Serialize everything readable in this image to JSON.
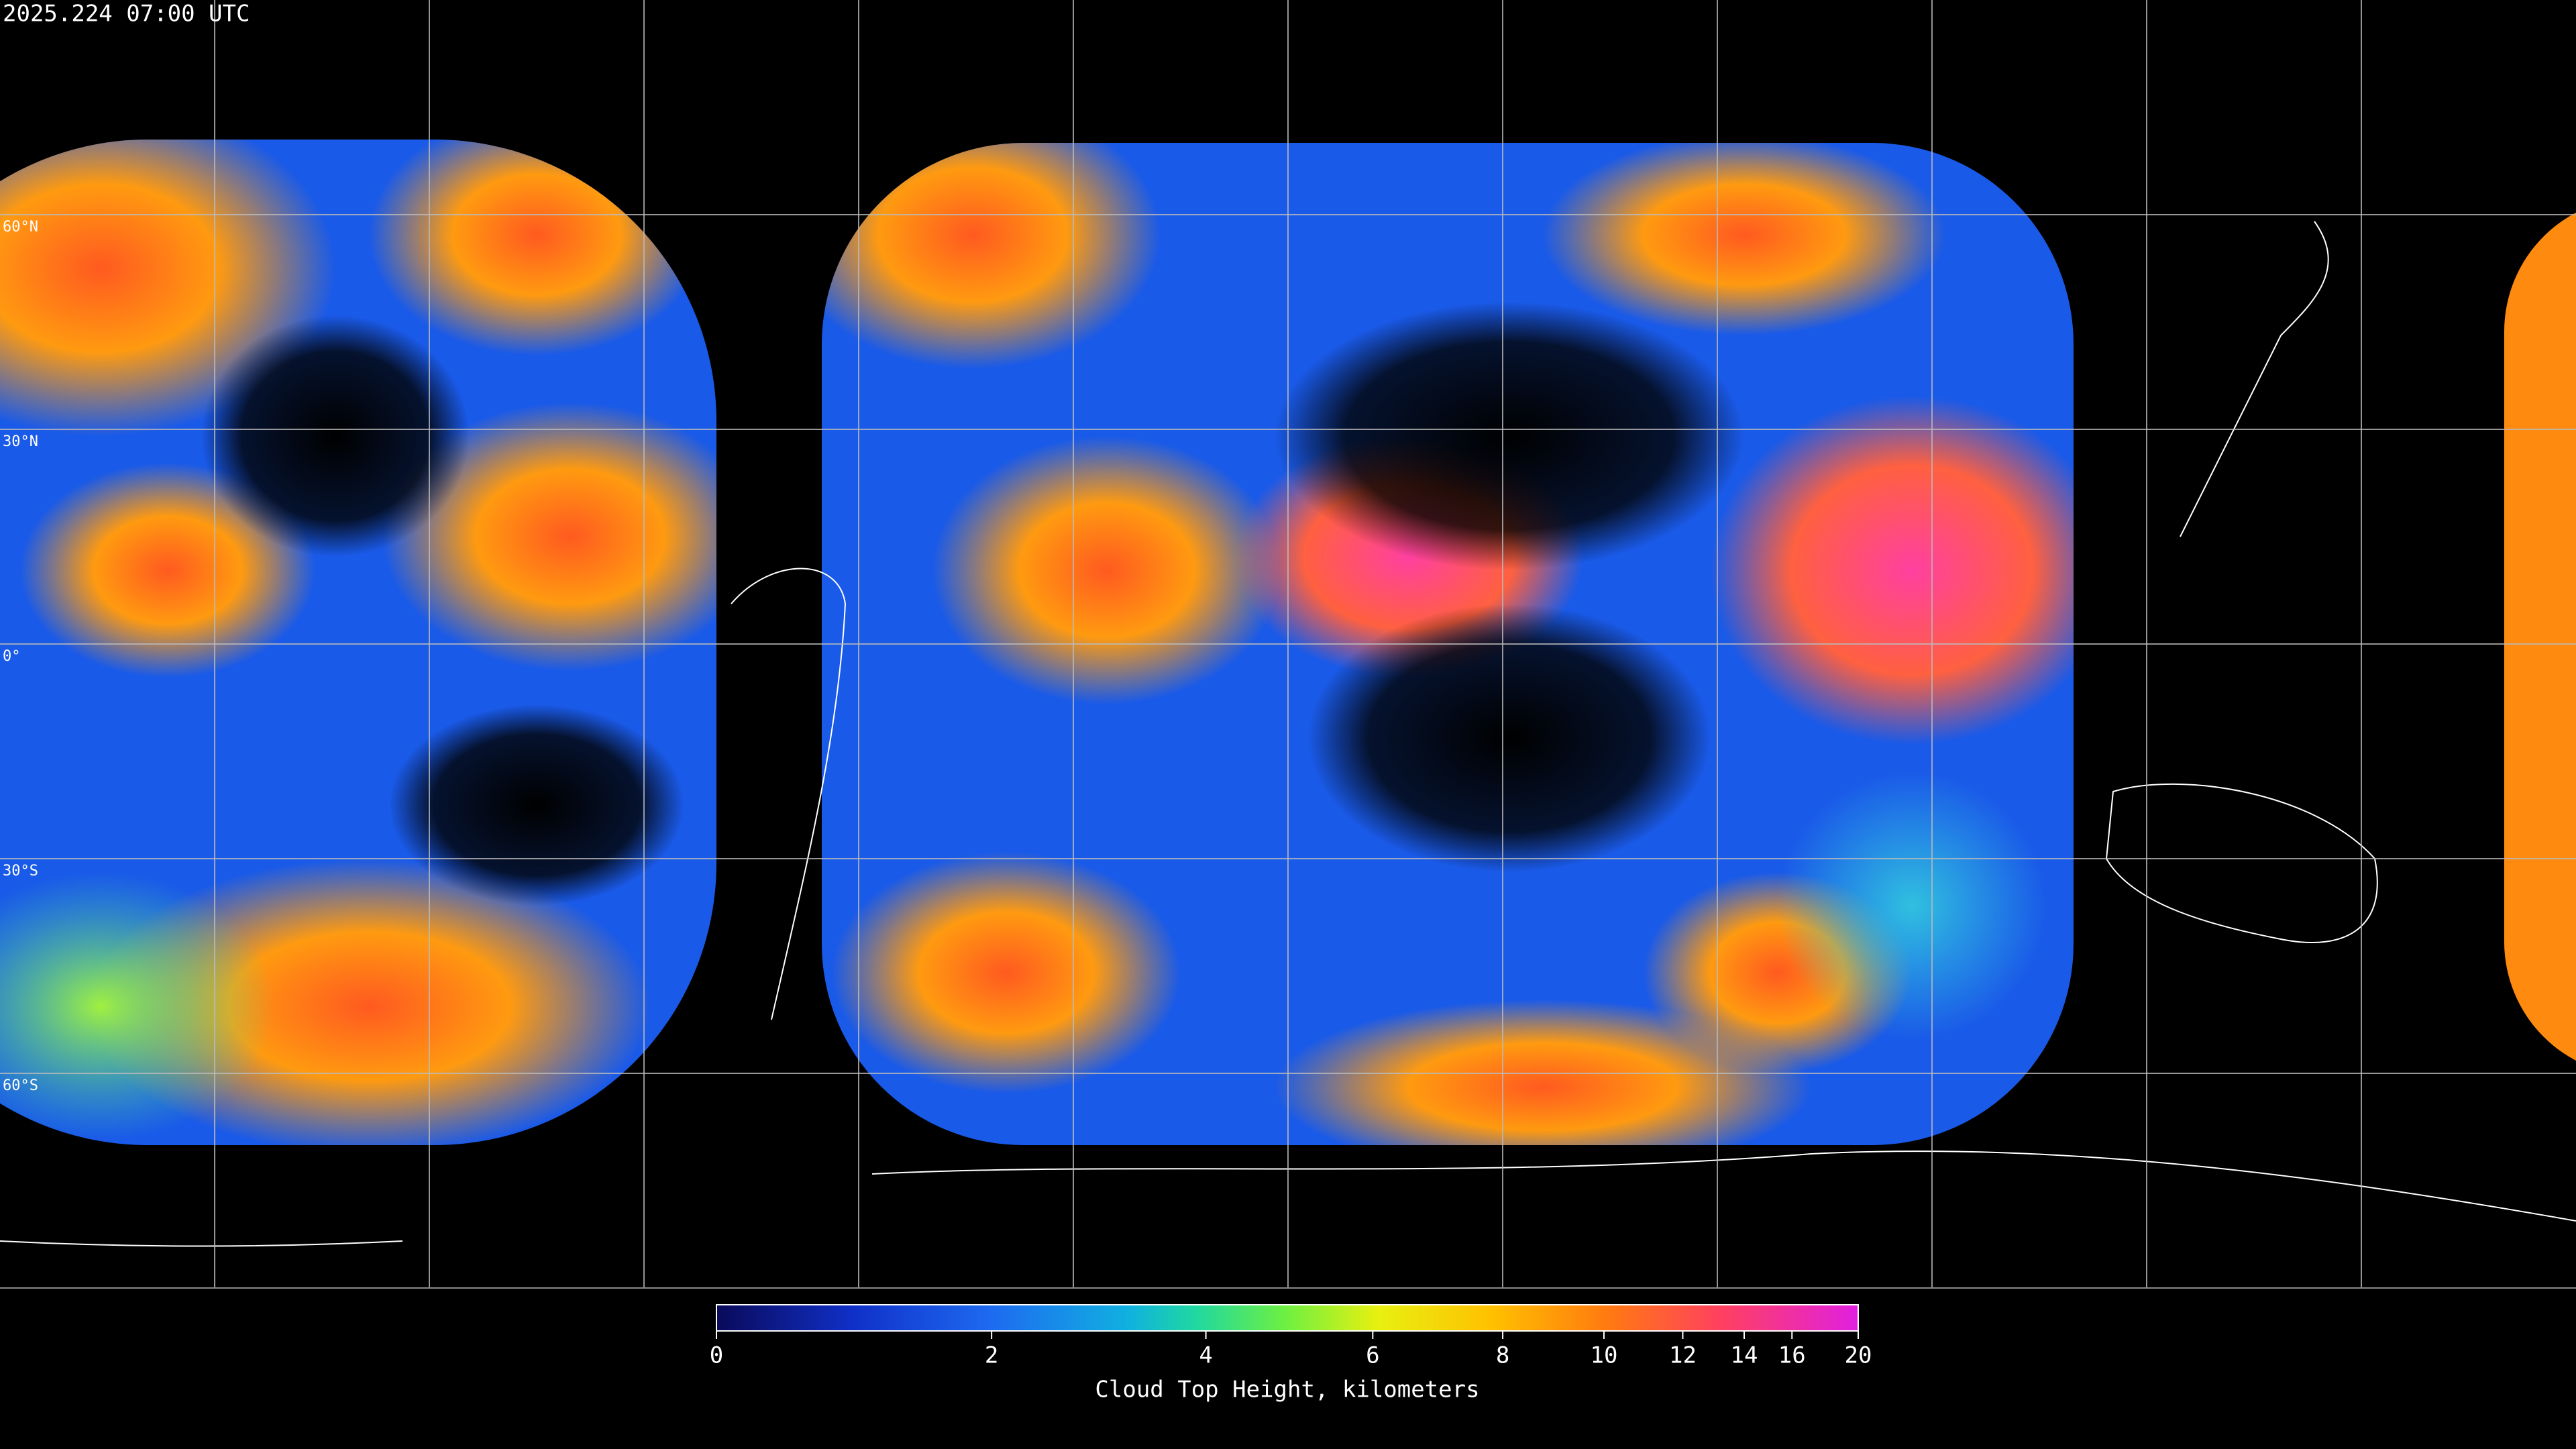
{
  "title": "2025.224 07:00 UTC",
  "lat_labels": [
    "60°N",
    "30°N",
    "0°",
    "30°S",
    "60°S"
  ],
  "colorbar": {
    "label": "Cloud Top Height, kilometers",
    "range": [
      0,
      20
    ],
    "ticks": [
      0,
      2,
      4,
      6,
      8,
      10,
      12,
      14,
      16,
      20
    ]
  }
}
